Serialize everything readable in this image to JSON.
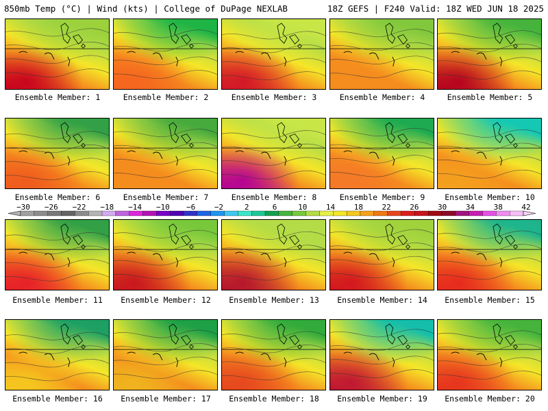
{
  "header": {
    "left": "850mb Temp (°C) | Wind (kts) | College of DuPage NEXLAB",
    "right": "18Z GEFS | F240 Valid: 18Z WED JUN 18 2025"
  },
  "members": [
    {
      "label": "Ensemble Member: 1",
      "hot": "#c8001e",
      "cool": "#9bd23c"
    },
    {
      "label": "Ensemble Member: 2",
      "hot": "#f5641e",
      "cool": "#1eb446"
    },
    {
      "label": "Ensemble Member: 3",
      "hot": "#d21428",
      "cool": "#c8e646"
    },
    {
      "label": "Ensemble Member: 4",
      "hot": "#f58c1e",
      "cool": "#82c83c"
    },
    {
      "label": "Ensemble Member: 5",
      "hot": "#b4001e",
      "cool": "#46b43c"
    },
    {
      "label": "Ensemble Member: 6",
      "hot": "#f05a1e",
      "cool": "#32a046"
    },
    {
      "label": "Ensemble Member: 7",
      "hot": "#f58c1e",
      "cool": "#46aa3c"
    },
    {
      "label": "Ensemble Member: 8",
      "hot": "#b40096",
      "cool": "#c8e646"
    },
    {
      "label": "Ensemble Member: 9",
      "hot": "#f57828",
      "cool": "#1eaa50"
    },
    {
      "label": "Ensemble Member: 10",
      "hot": "#f5a01e",
      "cool": "#14c8b4"
    },
    {
      "label": "Ensemble Member: 11",
      "hot": "#e61e28",
      "cool": "#32a046"
    },
    {
      "label": "Ensemble Member: 12",
      "hot": "#c8141e",
      "cool": "#78c83c"
    },
    {
      "label": "Ensemble Member: 13",
      "hot": "#b4142d",
      "cool": "#b4dc46"
    },
    {
      "label": "Ensemble Member: 14",
      "hot": "#d2141e",
      "cool": "#a0d23c"
    },
    {
      "label": "Ensemble Member: 15",
      "hot": "#e6281e",
      "cool": "#1eb48c"
    },
    {
      "label": "Ensemble Member: 16",
      "hot": "#f5c81e",
      "cool": "#1ea064"
    },
    {
      "label": "Ensemble Member: 17",
      "hot": "#f0b41e",
      "cool": "#1ea046"
    },
    {
      "label": "Ensemble Member: 18",
      "hot": "#e6461e",
      "cool": "#32aa3c"
    },
    {
      "label": "Ensemble Member: 19",
      "hot": "#be1432",
      "cool": "#14beaa"
    },
    {
      "label": "Ensemble Member: 20",
      "hot": "#e6321e",
      "cool": "#46b43c"
    }
  ],
  "colorbar": {
    "labels": [
      "−30",
      "−26",
      "−22",
      "−18",
      "−14",
      "−10",
      "−6",
      "−2",
      "2",
      "6",
      "10",
      "14",
      "18",
      "22",
      "26",
      "30",
      "34",
      "38",
      "42"
    ],
    "colors": [
      "#a0a0a0",
      "#8c8c8c",
      "#787878",
      "#646464",
      "#8c8c8c",
      "#b4b4b4",
      "#d2aaf0",
      "#be64dc",
      "#dc28dc",
      "#b414b4",
      "#7800c8",
      "#5000b4",
      "#3232c8",
      "#1e64e6",
      "#1e96f0",
      "#3cc8f0",
      "#3ce6c8",
      "#1ec896",
      "#14a050",
      "#46b43c",
      "#78c83c",
      "#b4dc46",
      "#e6f046",
      "#f5e628",
      "#f5c81e",
      "#f5a01e",
      "#f07814",
      "#e6461e",
      "#dc1e1e",
      "#c8141e",
      "#a00a14",
      "#8c0a28",
      "#a0147d",
      "#c81eb4",
      "#e650e6",
      "#f08cf0",
      "#f5bef5"
    ]
  }
}
